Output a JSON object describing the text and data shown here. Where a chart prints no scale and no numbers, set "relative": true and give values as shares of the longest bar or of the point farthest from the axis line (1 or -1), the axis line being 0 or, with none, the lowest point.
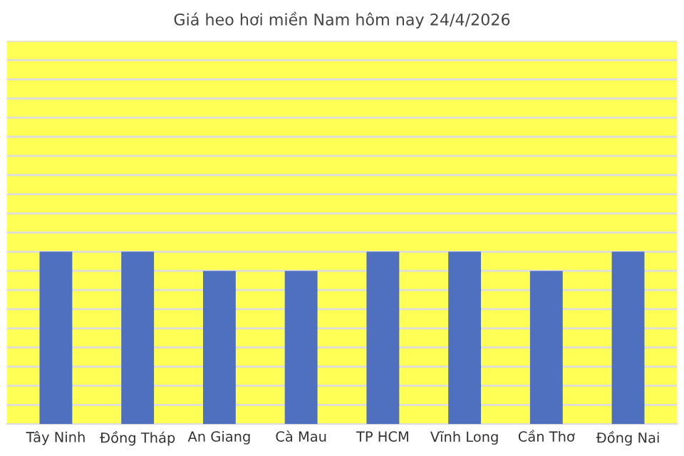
{
  "chart_data": {
    "type": "bar",
    "title": "Giá heo hơi miền Nam hôm nay 24/4/2026",
    "categories": [
      "Tây Ninh",
      "Đồng Tháp",
      "An Giang",
      "Cà Mau",
      "TP HCM",
      "Vĩnh Long",
      "Cần Thơ",
      "Đồng Nai"
    ],
    "values": [
      1,
      1,
      0.889,
      0.889,
      1,
      1,
      0.889,
      1
    ],
    "color": "#4f6fbf",
    "relative": true,
    "grid": "y"
  }
}
